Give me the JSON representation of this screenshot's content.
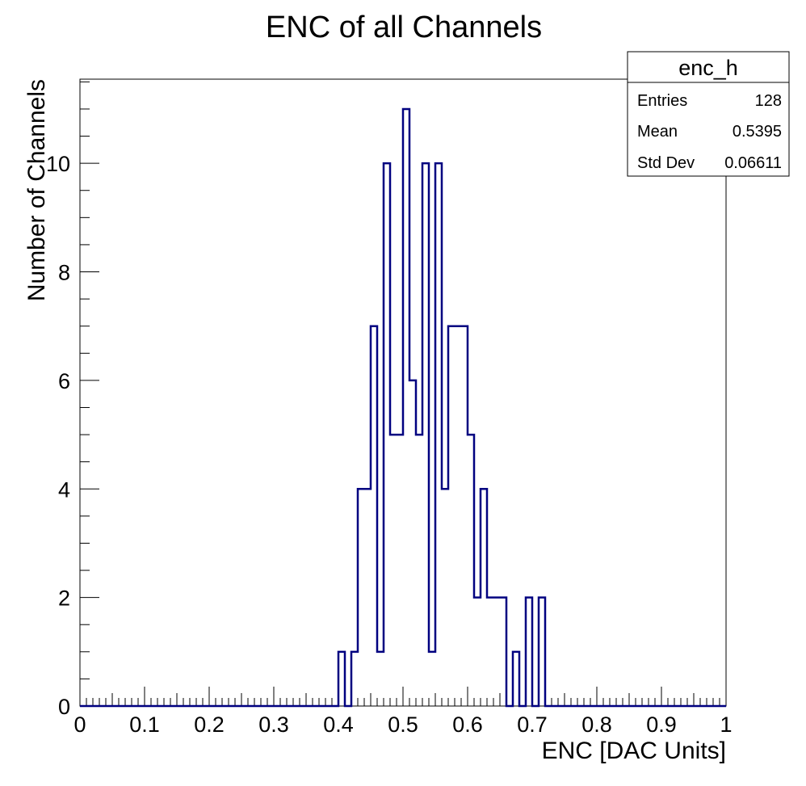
{
  "chart_data": {
    "type": "bar",
    "histogram": true,
    "title": "ENC of all Channels",
    "xlabel": "ENC [DAC Units]",
    "ylabel": "Number of Channels",
    "xlim": [
      0,
      1
    ],
    "ylim": [
      0,
      11.55
    ],
    "bin_width": 0.01,
    "x_ticks": [
      "0",
      "0.1",
      "0.2",
      "0.3",
      "0.4",
      "0.5",
      "0.6",
      "0.7",
      "0.8",
      "0.9",
      "1"
    ],
    "y_ticks": [
      "0",
      "2",
      "4",
      "6",
      "8",
      "10"
    ],
    "line_color": "#000080",
    "bins": [
      {
        "x": 0.4,
        "count": 1
      },
      {
        "x": 0.41,
        "count": 0
      },
      {
        "x": 0.42,
        "count": 1
      },
      {
        "x": 0.43,
        "count": 4
      },
      {
        "x": 0.44,
        "count": 4
      },
      {
        "x": 0.45,
        "count": 7
      },
      {
        "x": 0.46,
        "count": 1
      },
      {
        "x": 0.47,
        "count": 10
      },
      {
        "x": 0.48,
        "count": 5
      },
      {
        "x": 0.49,
        "count": 5
      },
      {
        "x": 0.5,
        "count": 11
      },
      {
        "x": 0.51,
        "count": 6
      },
      {
        "x": 0.52,
        "count": 5
      },
      {
        "x": 0.53,
        "count": 10
      },
      {
        "x": 0.54,
        "count": 1
      },
      {
        "x": 0.55,
        "count": 10
      },
      {
        "x": 0.56,
        "count": 4
      },
      {
        "x": 0.57,
        "count": 7
      },
      {
        "x": 0.58,
        "count": 7
      },
      {
        "x": 0.59,
        "count": 7
      },
      {
        "x": 0.6,
        "count": 5
      },
      {
        "x": 0.61,
        "count": 2
      },
      {
        "x": 0.62,
        "count": 4
      },
      {
        "x": 0.63,
        "count": 2
      },
      {
        "x": 0.64,
        "count": 2
      },
      {
        "x": 0.65,
        "count": 2
      },
      {
        "x": 0.66,
        "count": 0
      },
      {
        "x": 0.67,
        "count": 1
      },
      {
        "x": 0.68,
        "count": 0
      },
      {
        "x": 0.69,
        "count": 2
      },
      {
        "x": 0.7,
        "count": 0
      },
      {
        "x": 0.71,
        "count": 2
      }
    ],
    "stats_box": {
      "name": "enc_h",
      "rows": [
        {
          "label": "Entries",
          "value": "128"
        },
        {
          "label": "Mean",
          "value": "0.5395"
        },
        {
          "label": "Std Dev",
          "value": "0.06611"
        }
      ]
    }
  }
}
